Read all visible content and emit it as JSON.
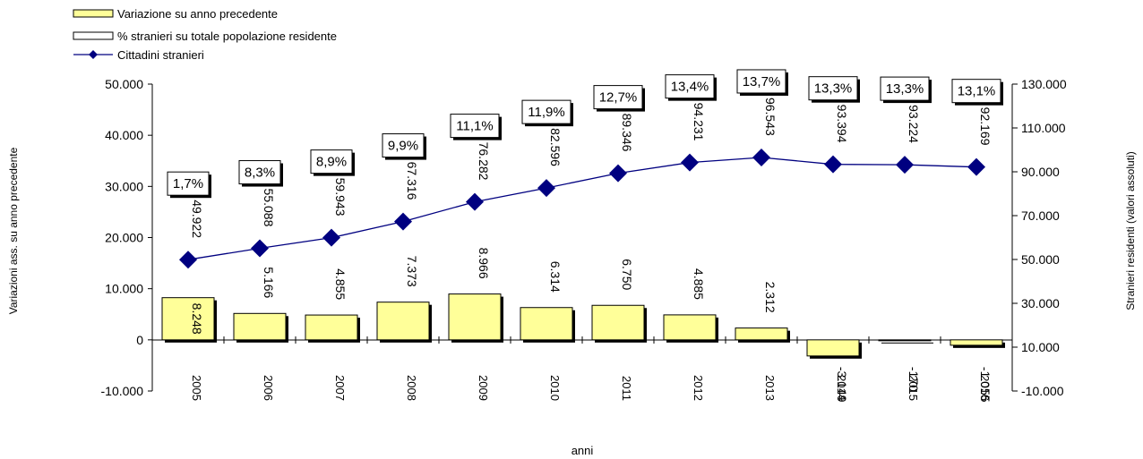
{
  "chart_data": {
    "type": "bar",
    "categories": [
      "2005",
      "2006",
      "2007",
      "2008",
      "2009",
      "2010",
      "2011",
      "2012",
      "2013",
      "2014",
      "2015",
      "2016"
    ],
    "xlabel": "anni",
    "ylabel": "Variazioni ass. su anno precedente",
    "y2label": "Stranieri residenti (valori assoluti)",
    "ylim": [
      -10000,
      50000
    ],
    "y2lim": [
      -10000,
      130000
    ],
    "y_ticks": [
      "-10.000",
      "0",
      "10.000",
      "20.000",
      "30.000",
      "40.000",
      "50.000"
    ],
    "y2_ticks": [
      "-10.000",
      "10.000",
      "30.000",
      "50.000",
      "70.000",
      "90.000",
      "110.000",
      "130.000"
    ],
    "grid": false,
    "legend_position": "top-left",
    "colors": {
      "bar": "#ffff99",
      "line": "#000080",
      "marker": "#000080"
    },
    "series": [
      {
        "name": "Variazione su anno precedente",
        "kind": "bar",
        "axis": "left",
        "values": [
          8248,
          5166,
          4855,
          7373,
          8966,
          6314,
          6750,
          4885,
          2312,
          -3149,
          -170,
          -1055
        ],
        "labels": [
          "8.248",
          "5.166",
          "4.855",
          "7.373",
          "8.966",
          "6.314",
          "6.750",
          "4.885",
          "2.312",
          "-3.149",
          "-170",
          "-1.055"
        ]
      },
      {
        "name": "% stranieri su totale popolazione residente",
        "kind": "boxed-label",
        "values": [
          1.7,
          8.3,
          8.9,
          9.9,
          11.1,
          11.9,
          12.7,
          13.4,
          13.7,
          13.3,
          13.3,
          13.1
        ],
        "labels": [
          "1,7%",
          "8,3%",
          "8,9%",
          "9,9%",
          "11,1%",
          "11,9%",
          "12,7%",
          "13,4%",
          "13,7%",
          "13,3%",
          "13,3%",
          "13,1%"
        ]
      },
      {
        "name": "Cittadini stranieri",
        "kind": "line",
        "axis": "right",
        "values": [
          49922,
          55088,
          59943,
          67316,
          76282,
          82596,
          89346,
          94231,
          96543,
          93394,
          93224,
          92169
        ],
        "labels": [
          "49.922",
          "55.088",
          "59.943",
          "67.316",
          "76.282",
          "82.596",
          "89.346",
          "94.231",
          "96.543",
          "93.394",
          "93.224",
          "92.169"
        ]
      }
    ]
  }
}
